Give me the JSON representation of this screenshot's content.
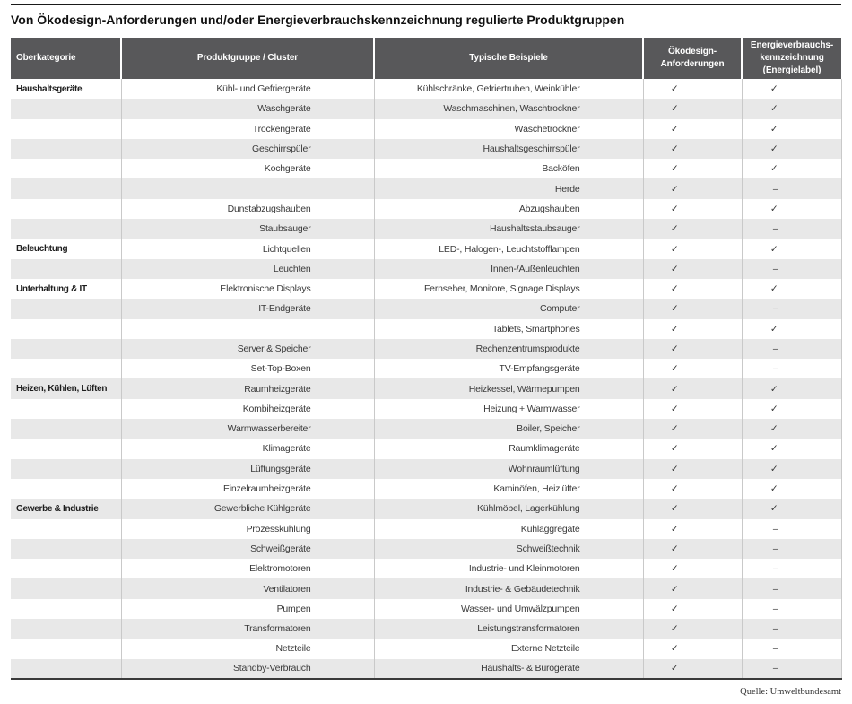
{
  "title": "Von Ökodesign-Anforderungen und/oder Energieverbrauchskennzeichnung regulierte Produktgruppen",
  "source_note": "Quelle: Umweltbundesamt",
  "headers": {
    "category": "Oberkategorie",
    "product_group": "Produktgruppe / Cluster",
    "examples": "Typische Beispiele",
    "oekodesign": "Ökodesign-\nAnforderungen",
    "energy_label": "Energieverbrauchs-\nkennzeichnung\n(Energielabel)"
  },
  "symbols": {
    "check": "✓",
    "none": "–"
  },
  "colors": {
    "header_bg": "#58585a",
    "header_text": "#ffffff",
    "row_stripe": "#e8e8e8",
    "cell_border": "#c9c9c9",
    "top_rule": "#1a1a1a",
    "bottom_rule": "#3a3a3a"
  },
  "chart_data": {
    "type": "table",
    "title": "Von Ökodesign-Anforderungen und/oder Energieverbrauchskennzeichnung regulierte Produktgruppen",
    "columns": [
      "Oberkategorie",
      "Produktgruppe / Cluster",
      "Typische Beispiele",
      "Ökodesign-Anforderungen",
      "Energieverbrauchskennzeichnung (Energielabel)"
    ],
    "rows": [
      [
        "Haushaltsgeräte",
        "Kühl- und Gefriergeräte",
        "Kühlschränke, Gefriertruhen, Weinkühler",
        "✓",
        "✓"
      ],
      [
        "",
        "Waschgeräte",
        "Waschmaschinen, Waschtrockner",
        "✓",
        "✓"
      ],
      [
        "",
        "Trockengeräte",
        "Wäschetrockner",
        "✓",
        "✓"
      ],
      [
        "",
        "Geschirrspüler",
        "Haushaltsgeschirrspüler",
        "✓",
        "✓"
      ],
      [
        "",
        "Kochgeräte",
        "Backöfen",
        "✓",
        "✓"
      ],
      [
        "",
        "",
        "Herde",
        "✓",
        "–"
      ],
      [
        "",
        "Dunstabzugshauben",
        "Abzugshauben",
        "✓",
        "✓"
      ],
      [
        "",
        "Staubsauger",
        "Haushaltsstaubsauger",
        "✓",
        "–"
      ],
      [
        "Beleuchtung",
        "Lichtquellen",
        "LED-, Halogen-, Leuchtstofflampen",
        "✓",
        "✓"
      ],
      [
        "",
        "Leuchten",
        "Innen-/Außenleuchten",
        "✓",
        "–"
      ],
      [
        "Unterhaltung & IT",
        "Elektronische Displays",
        "Fernseher, Monitore, Signage Displays",
        "✓",
        "✓"
      ],
      [
        "",
        "IT-Endgeräte",
        "Computer",
        "✓",
        "–"
      ],
      [
        "",
        "",
        "Tablets, Smartphones",
        "✓",
        "✓"
      ],
      [
        "",
        "Server & Speicher",
        "Rechenzentrumsprodukte",
        "✓",
        "–"
      ],
      [
        "",
        "Set-Top-Boxen",
        "TV-Empfangsgeräte",
        "✓",
        "–"
      ],
      [
        "Heizen, Kühlen, Lüften",
        "Raumheizgeräte",
        "Heizkessel, Wärmepumpen",
        "✓",
        "✓"
      ],
      [
        "",
        "Kombiheizgeräte",
        "Heizung + Warmwasser",
        "✓",
        "✓"
      ],
      [
        "",
        "Warmwasserbereiter",
        "Boiler, Speicher",
        "✓",
        "✓"
      ],
      [
        "",
        "Klimageräte",
        "Raumklimageräte",
        "✓",
        "✓"
      ],
      [
        "",
        "Lüftungsgeräte",
        "Wohnraumlüftung",
        "✓",
        "✓"
      ],
      [
        "",
        "Einzelraumheizgeräte",
        "Kaminöfen, Heizlüfter",
        "✓",
        "✓"
      ],
      [
        "Gewerbe & Industrie",
        "Gewerbliche Kühlgeräte",
        "Kühlmöbel, Lagerkühlung",
        "✓",
        "✓"
      ],
      [
        "",
        "Prozesskühlung",
        "Kühlaggregate",
        "✓",
        "–"
      ],
      [
        "",
        "Schweißgeräte",
        "Schweißtechnik",
        "✓",
        "–"
      ],
      [
        "",
        "Elektromotoren",
        "Industrie- und Kleinmotoren",
        "✓",
        "–"
      ],
      [
        "",
        "Ventilatoren",
        "Industrie- & Gebäudetechnik",
        "✓",
        "–"
      ],
      [
        "",
        "Pumpen",
        "Wasser- und Umwälzpumpen",
        "✓",
        "–"
      ],
      [
        "",
        "Transformatoren",
        "Leistungstransformatoren",
        "✓",
        "–"
      ],
      [
        "",
        "Netzteile",
        "Externe Netzteile",
        "✓",
        "–"
      ],
      [
        "",
        "Standby-Verbrauch",
        "Haushalts- & Bürogeräte",
        "✓",
        "–"
      ]
    ]
  }
}
